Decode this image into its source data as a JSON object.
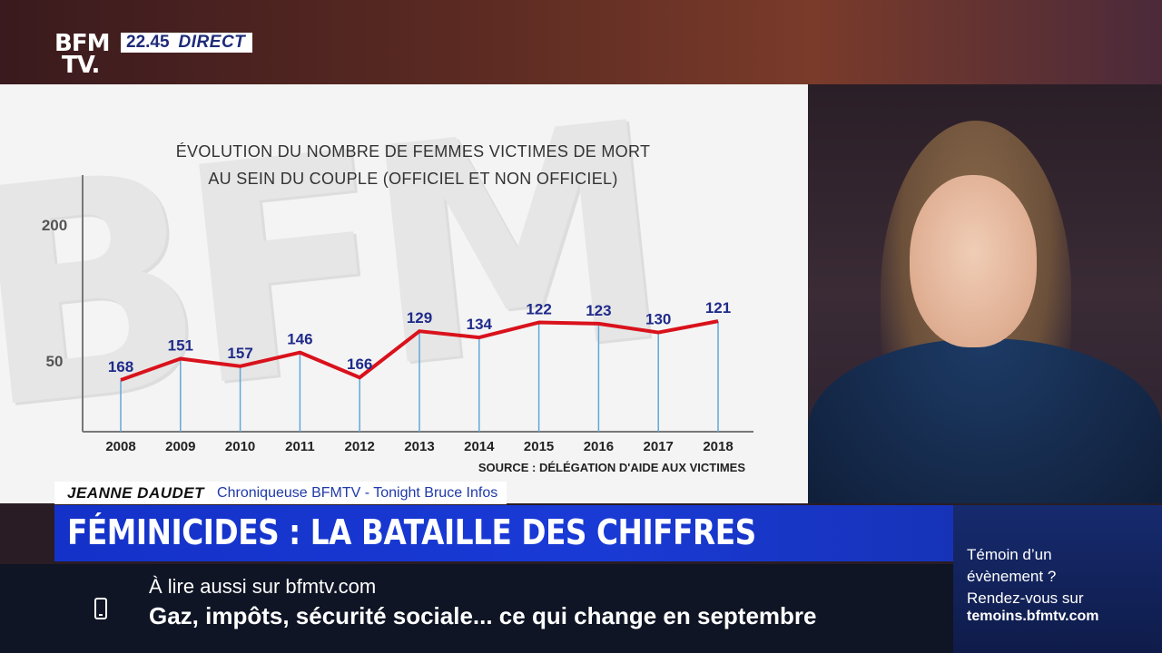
{
  "channel": {
    "logo_line1": "BFM",
    "logo_line2": "TV.",
    "time": "22.45",
    "live_label": "DIRECT"
  },
  "chart_data": {
    "type": "line",
    "title_line1": "ÉVOLUTION DU NOMBRE DE FEMMES VICTIMES DE MORT",
    "title_line2": "AU SEIN DU COUPLE (OFFICIEL ET NON OFFICIEL)",
    "categories": [
      "2008",
      "2009",
      "2010",
      "2011",
      "2012",
      "2013",
      "2014",
      "2015",
      "2016",
      "2017",
      "2018"
    ],
    "values": [
      168,
      151,
      157,
      146,
      166,
      129,
      134,
      122,
      123,
      130,
      121
    ],
    "y_ticks": [
      "200",
      "50"
    ],
    "source": "SOURCE : DÉLÉGATION D'AIDE AUX VICTIMES",
    "line_color": "#d9121c",
    "label_color": "#1f2b8a",
    "drop_line_color": "#5fa8d9"
  },
  "lower_third": {
    "name": "JEANNE DAUDET",
    "role": "Chroniqueuse BFMTV - Tonight Bruce Infos"
  },
  "headline": "FÉMINICIDES : LA BATAILLE DES CHIFFRES",
  "ticker": {
    "kicker": "À lire aussi sur bfmtv.com",
    "news": "Gaz, impôts, sécurité sociale... ce qui change en septembre"
  },
  "side_box": {
    "line1": "Témoin d’un",
    "line2": "évènement ?",
    "line3": "Rendez-vous sur",
    "url": "temoins.bfmtv.com"
  }
}
